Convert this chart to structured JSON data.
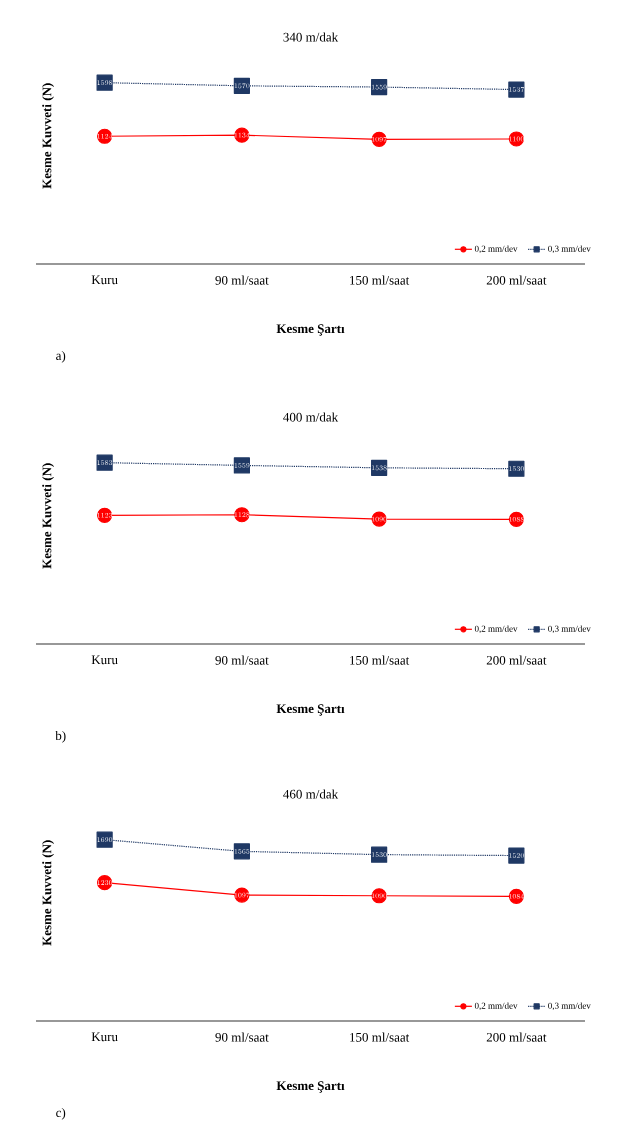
{
  "chart_data": [
    {
      "type": "line",
      "title": "340 m/dak",
      "xlabel": "Kesme Şartı",
      "ylabel": "Kesme Kuvveti (N)",
      "categories": [
        "Kuru",
        "90 ml/saat",
        "150 ml/saat",
        "200 ml/saat"
      ],
      "tick_labels": "x",
      "data_labels": true,
      "legend": "bottom right",
      "annotations": [
        "a)"
      ],
      "series": [
        {
          "name": "0,2 mm/dev",
          "color": "#ff0000",
          "marker": "circle",
          "line_style": "solid",
          "values": [
            1124,
            1134,
            1097,
            1100
          ]
        },
        {
          "name": "0,3 mm/dev",
          "color": "#1f3864",
          "marker": "square",
          "line_style": "dotted",
          "values": [
            1598,
            1570,
            1559,
            1537
          ]
        }
      ]
    },
    {
      "type": "line",
      "title": "400 m/dak",
      "xlabel": "Kesme Şartı",
      "ylabel": "Kesme Kuvveti (N)",
      "categories": [
        "Kuru",
        "90 ml/saat",
        "150 ml/saat",
        "200 ml/saat"
      ],
      "tick_labels": "x",
      "data_labels": true,
      "legend": "bottom right",
      "annotations": [
        "b)"
      ],
      "series": [
        {
          "name": "0,2 mm/dev",
          "color": "#ff0000",
          "marker": "circle",
          "line_style": "solid",
          "values": [
            1123,
            1128,
            1090,
            1088
          ]
        },
        {
          "name": "0,3 mm/dev",
          "color": "#1f3864",
          "marker": "square",
          "line_style": "dotted",
          "values": [
            1583,
            1559,
            1538,
            1530
          ]
        }
      ]
    },
    {
      "type": "line",
      "title": "460 m/dak",
      "xlabel": "Kesme Şartı",
      "ylabel": "Kesme Kuvveti (N)",
      "categories": [
        "Kuru",
        "90 ml/saat",
        "150 ml/saat",
        "200 ml/saat"
      ],
      "tick_labels": "x",
      "data_labels": true,
      "legend": "bottom right",
      "annotations": [
        "c)"
      ],
      "series": [
        {
          "name": "0,2 mm/dev",
          "color": "#ff0000",
          "marker": "circle",
          "line_style": "solid",
          "values": [
            1230,
            1097,
            1090,
            1084
          ]
        },
        {
          "name": "0,3 mm/dev",
          "color": "#1f3864",
          "marker": "square",
          "line_style": "dotted",
          "values": [
            1690,
            1565,
            1530,
            1520
          ]
        }
      ]
    }
  ]
}
